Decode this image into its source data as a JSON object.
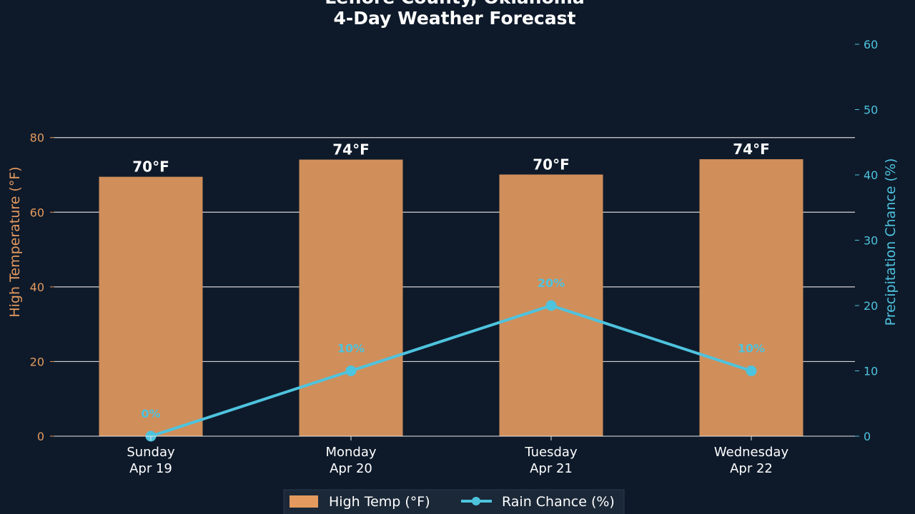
{
  "title_line1": "Leflore County, Oklahoma",
  "title_line2": "4-Day Weather Forecast",
  "colors": {
    "background": "#0e1a2a",
    "bar": "#d08e5a",
    "temp_axis": "#e49a5f",
    "rain": "#4ec3de",
    "grid": "#e8e8e8",
    "text": "#ffffff"
  },
  "chart_data": {
    "type": "bar",
    "categories": [
      [
        "Sunday",
        "Apr 19"
      ],
      [
        "Monday",
        "Apr 20"
      ],
      [
        "Tuesday",
        "Apr 21"
      ],
      [
        "Wednesday",
        "Apr 22"
      ]
    ],
    "series": [
      {
        "name": "High Temp (°F)",
        "type": "bar",
        "axis": "left",
        "values": [
          69.5,
          74.1,
          70.1,
          74.2
        ],
        "labels": [
          "70°F",
          "74°F",
          "70°F",
          "74°F"
        ]
      },
      {
        "name": "Rain Chance (%)",
        "type": "line",
        "axis": "right",
        "values": [
          0,
          10,
          20,
          10
        ],
        "labels": [
          "0%",
          "10%",
          "20%",
          "10%"
        ]
      }
    ],
    "ylabel_left": "High Temperature (°F)",
    "ylabel_right": "Precipitation Chance (%)",
    "ylim_left": [
      0,
      105
    ],
    "yticks_left": [
      0,
      20,
      40,
      60,
      80
    ],
    "ylim_right": [
      0,
      60
    ],
    "yticks_right": [
      0,
      10,
      20,
      30,
      40,
      50,
      60
    ],
    "grid": true,
    "legend_position": "bottom-center"
  }
}
